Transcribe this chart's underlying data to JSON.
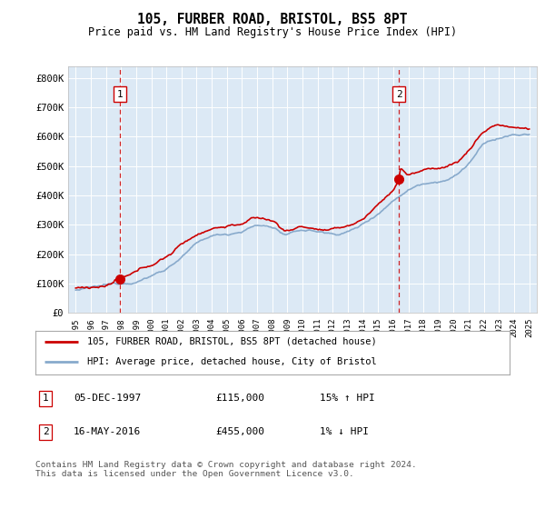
{
  "title": "105, FURBER ROAD, BRISTOL, BS5 8PT",
  "subtitle": "Price paid vs. HM Land Registry's House Price Index (HPI)",
  "ylabel_ticks": [
    "£0",
    "£100K",
    "£200K",
    "£300K",
    "£400K",
    "£500K",
    "£600K",
    "£700K",
    "£800K"
  ],
  "ytick_values": [
    0,
    100000,
    200000,
    300000,
    400000,
    500000,
    600000,
    700000,
    800000
  ],
  "ylim": [
    0,
    840000
  ],
  "xlim_start": 1994.5,
  "xlim_end": 2025.5,
  "bg_color": "#dce9f5",
  "line1_color": "#cc0000",
  "line2_color": "#88aacc",
  "transaction1_x": 1997.92,
  "transaction1_y": 115000,
  "transaction2_x": 2016.37,
  "transaction2_y": 455000,
  "legend_label1": "105, FURBER ROAD, BRISTOL, BS5 8PT (detached house)",
  "legend_label2": "HPI: Average price, detached house, City of Bristol",
  "annotation1_date": "05-DEC-1997",
  "annotation1_price": "£115,000",
  "annotation1_hpi": "15% ↑ HPI",
  "annotation2_date": "16-MAY-2016",
  "annotation2_price": "£455,000",
  "annotation2_hpi": "1% ↓ HPI",
  "footer": "Contains HM Land Registry data © Crown copyright and database right 2024.\nThis data is licensed under the Open Government Licence v3.0."
}
